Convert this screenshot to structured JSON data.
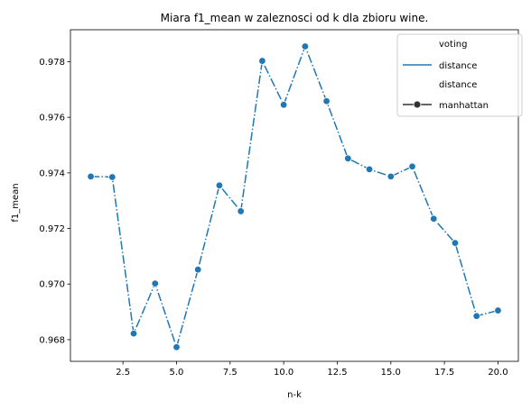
{
  "chart_data": {
    "type": "line",
    "title": "Miara f1_mean w zaleznosci od k dla zbioru wine.",
    "xlabel": "n-k",
    "ylabel": "f1_mean",
    "xlim": [
      0.05,
      20.95
    ],
    "ylim": [
      0.96722,
      0.97915
    ],
    "xticks": [
      2.5,
      5.0,
      7.5,
      10.0,
      12.5,
      15.0,
      17.5,
      20.0
    ],
    "xtick_labels": [
      "2.5",
      "5.0",
      "7.5",
      "10.0",
      "12.5",
      "15.0",
      "17.5",
      "20.0"
    ],
    "yticks": [
      0.968,
      0.97,
      0.972,
      0.974,
      0.976,
      0.978
    ],
    "ytick_labels": [
      "0.968",
      "0.970",
      "0.972",
      "0.974",
      "0.976",
      "0.978"
    ],
    "grid": false,
    "legend_position": "top-right",
    "legend": {
      "hue_title": "voting",
      "hue_entry": "distance",
      "style_title": "distance",
      "style_entry": "manhattan"
    },
    "series": [
      {
        "name": "distance",
        "color": "#1f77b4",
        "linestyle": "dashdot",
        "marker": "circle",
        "x": [
          1,
          2,
          3,
          4,
          5,
          6,
          7,
          8,
          9,
          10,
          11,
          12,
          13,
          14,
          15,
          16,
          17,
          18,
          19,
          20
        ],
        "y": [
          0.97387,
          0.97385,
          0.96822,
          0.97002,
          0.96773,
          0.97052,
          0.97355,
          0.97262,
          0.97803,
          0.97645,
          0.97855,
          0.97658,
          0.97452,
          0.97413,
          0.97387,
          0.97423,
          0.97235,
          0.97148,
          0.96885,
          0.96905
        ]
      }
    ]
  }
}
